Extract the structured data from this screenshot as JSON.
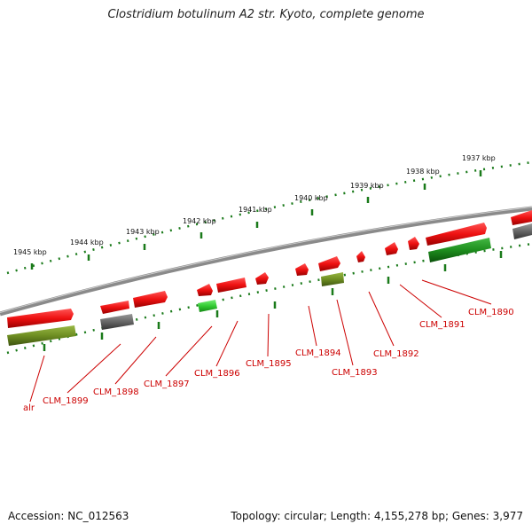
{
  "title": "Clostridium botulinum A2 str. Kyoto, complete genome",
  "footer": {
    "accession": "Accession: NC_012563",
    "summary": "Topology: circular; Length: 4,155,278 bp; Genes: 3,977"
  },
  "kbp_labels": [
    "1945 kbp",
    "1944 kbp",
    "1943 kbp",
    "1942 kbp",
    "1941 kbp",
    "1940 kbp",
    "1939 kbp",
    "1938 kbp",
    "1937 kbp"
  ],
  "gene_labels": [
    "alr",
    "CLM_1899",
    "CLM_1898",
    "CLM_1897",
    "CLM_1896",
    "CLM_1895",
    "CLM_1894",
    "CLM_1893",
    "CLM_1892",
    "CLM_1891",
    "CLM_1890"
  ],
  "colors": {
    "backbone": "#8a8a8a",
    "gene_red": "#ee1111",
    "gene_gray": "#666666",
    "gene_olive": "#6e8e22",
    "gene_green": "#1e8e1e",
    "gene_lightgreen": "#33cc33",
    "label_red": "#cc0000",
    "tick_green": "#1a7a1a"
  }
}
